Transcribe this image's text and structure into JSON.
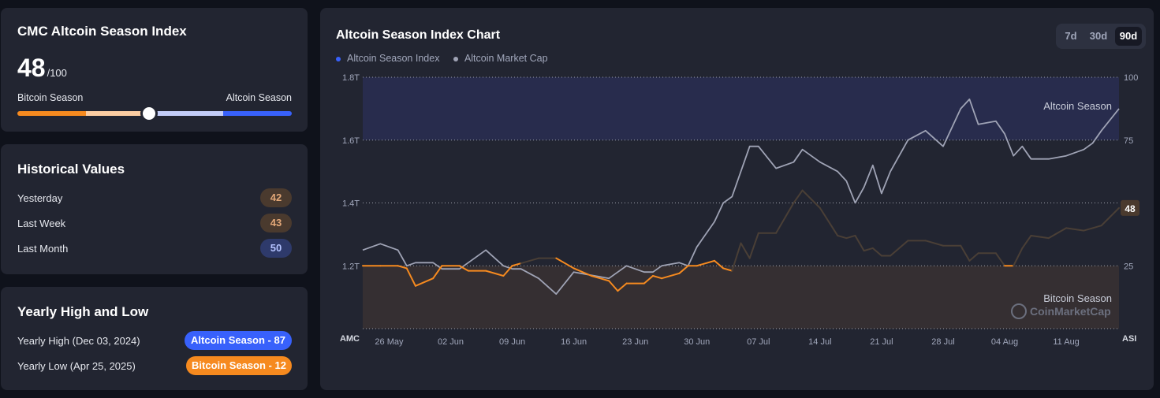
{
  "index_card": {
    "title": "CMC Altcoin Season Index",
    "value": "48",
    "max": "/100",
    "left_label": "Bitcoin Season",
    "right_label": "Altcoin Season",
    "level": 48
  },
  "historical": {
    "title": "Historical Values",
    "rows": [
      {
        "label": "Yesterday",
        "value": "42"
      },
      {
        "label": "Last Week",
        "value": "43"
      },
      {
        "label": "Last Month",
        "value": "50"
      }
    ]
  },
  "yearly": {
    "title": "Yearly High and Low",
    "high_label": "Yearly High (Dec 03, 2024)",
    "high_value": "Altcoin Season - 87",
    "low_label": "Yearly Low (Apr 25, 2025)",
    "low_value": "Bitcoin Season - 12"
  },
  "chart_card": {
    "title": "Altcoin Season Index Chart",
    "tabs": [
      "7d",
      "30d",
      "90d"
    ],
    "active_tab": "90d",
    "current_value": "48",
    "altcoin_zone_label": "Altcoin Season",
    "bitcoin_zone_label": "Bitcoin Season",
    "watermark": "CoinMarketCap",
    "left_axis_title": "AMC",
    "right_axis_title": "ASI"
  },
  "colors": {
    "index_line": "#3861fb",
    "market_cap_line": "#9fa3b5",
    "bitcoin_orange": "#f68a1f",
    "altcoin_blue": "#3861fb"
  },
  "chart_data": {
    "type": "line",
    "legend": [
      "Altcoin Season Index",
      "Altcoin Market Cap"
    ],
    "x_ticks": [
      "26 May",
      "02 Jun",
      "09 Jun",
      "16 Jun",
      "23 Jun",
      "30 Jun",
      "07 Jul",
      "14 Jul",
      "21 Jul",
      "28 Jul",
      "04 Aug",
      "11 Aug"
    ],
    "left_axis": {
      "ticks": [
        "1.8T",
        "1.6T",
        "1.4T",
        "1.2T"
      ],
      "range": [
        1.0,
        1.8
      ]
    },
    "right_axis": {
      "ticks": [
        "100",
        "75",
        "50",
        "25"
      ],
      "range": [
        0,
        100
      ]
    },
    "x_range": [
      0,
      86
    ],
    "series": [
      {
        "name": "Altcoin Season Index",
        "x": [
          0,
          2,
          4,
          5,
          6,
          8,
          9,
          11,
          12,
          14,
          16,
          17,
          18,
          20,
          22,
          24,
          26,
          28,
          29,
          30,
          32,
          33,
          34,
          36,
          37,
          38,
          40,
          41,
          42,
          43,
          44,
          45,
          47,
          49,
          50,
          52,
          54,
          55,
          56,
          57,
          58,
          59,
          60,
          62,
          64,
          66,
          68,
          69,
          70,
          72,
          73,
          74,
          75,
          76,
          78,
          80,
          82,
          83,
          84,
          86
        ],
        "y": [
          25,
          25,
          25,
          24,
          17,
          20,
          25,
          25,
          23,
          23,
          21,
          25,
          26,
          28,
          28,
          24,
          21,
          19,
          15,
          18,
          18,
          21,
          20,
          22,
          25,
          25,
          27,
          24,
          23,
          34,
          28,
          38,
          38,
          50,
          55,
          48,
          37,
          36,
          37,
          31,
          32,
          29,
          29,
          35,
          35,
          33,
          33,
          27,
          30,
          30,
          25,
          25,
          32,
          37,
          36,
          40,
          39,
          40,
          41,
          48
        ]
      },
      {
        "name": "Altcoin Market Cap",
        "x": [
          0,
          2,
          4,
          5,
          6,
          8,
          9,
          11,
          12,
          14,
          16,
          17,
          18,
          20,
          22,
          24,
          26,
          28,
          29,
          30,
          32,
          33,
          34,
          36,
          37,
          38,
          40,
          41,
          42,
          43,
          44,
          45,
          47,
          49,
          50,
          52,
          54,
          55,
          56,
          57,
          58,
          59,
          60,
          62,
          64,
          66,
          68,
          69,
          70,
          72,
          73,
          74,
          75,
          76,
          78,
          80,
          82,
          83,
          84,
          86
        ],
        "y": [
          1.25,
          1.27,
          1.25,
          1.2,
          1.21,
          1.21,
          1.19,
          1.19,
          1.21,
          1.25,
          1.2,
          1.19,
          1.19,
          1.16,
          1.11,
          1.18,
          1.17,
          1.16,
          1.18,
          1.2,
          1.18,
          1.18,
          1.2,
          1.21,
          1.2,
          1.26,
          1.34,
          1.4,
          1.42,
          1.5,
          1.58,
          1.58,
          1.51,
          1.53,
          1.57,
          1.53,
          1.5,
          1.47,
          1.4,
          1.45,
          1.52,
          1.43,
          1.5,
          1.6,
          1.63,
          1.58,
          1.7,
          1.73,
          1.65,
          1.66,
          1.62,
          1.55,
          1.58,
          1.54,
          1.54,
          1.55,
          1.57,
          1.59,
          1.63,
          1.7
        ]
      }
    ],
    "zones": [
      {
        "label": "Altcoin Season",
        "from": 75,
        "to": 100
      },
      {
        "label": "Bitcoin Season",
        "from": 0,
        "to": 25
      }
    ]
  }
}
